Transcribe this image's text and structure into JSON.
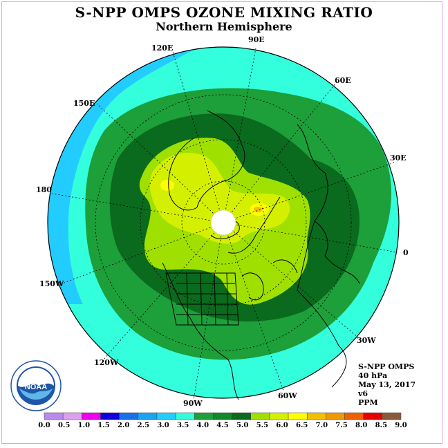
{
  "title": "S-NPP OMPS OZONE MIXING RATIO",
  "subtitle": "Northern Hemisphere",
  "longitude_labels": {
    "e90": "90E",
    "e120": "120E",
    "e60": "60E",
    "e150": "150E",
    "e30": "30E",
    "l180": "180",
    "l0": "0",
    "w150": "150W",
    "w30": "30W",
    "w120": "120W",
    "w60": "60W",
    "w90": "90W"
  },
  "info": {
    "instrument": "S-NPP OMPS",
    "level": "40 hPa",
    "date": "May 13, 2017",
    "version": "v6",
    "units": "PPM"
  },
  "logo_text": "NOAA",
  "colorbar": {
    "colors": [
      "#bb88ee",
      "#dda0ee",
      "#ee00ee",
      "#1100dd",
      "#1a70e8",
      "#1aa4f0",
      "#22ccff",
      "#33ffdd",
      "#1d9f3a",
      "#128a2a",
      "#0a6a1d",
      "#a0e000",
      "#d4f000",
      "#ffff00",
      "#f0c000",
      "#f09800",
      "#f06000",
      "#e80000",
      "#8a5a3a"
    ],
    "tick_labels": [
      "0.0",
      "0.5",
      "1.0",
      "1.5",
      "2.0",
      "2.5",
      "3.0",
      "3.5",
      "4.0",
      "4.5",
      "5.0",
      "5.5",
      "6.0",
      "6.5",
      "7.0",
      "7.5",
      "8.0",
      "8.5",
      "9.0"
    ]
  }
}
